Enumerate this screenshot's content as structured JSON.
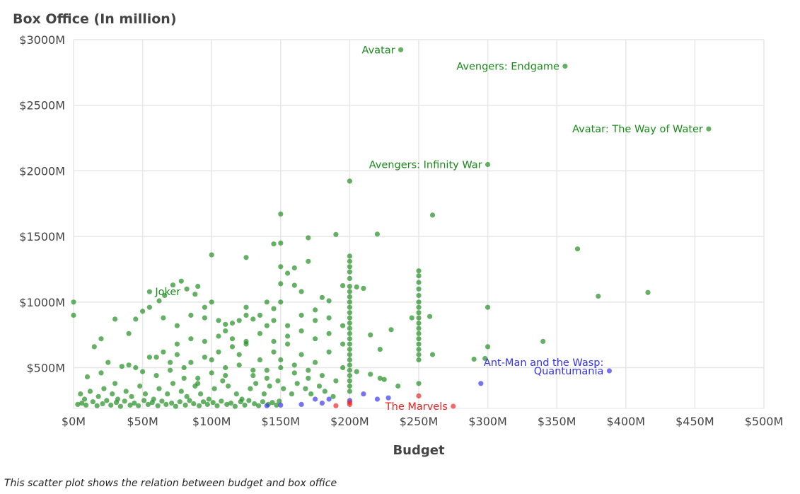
{
  "caption": "This scatter plot shows the relation between budget and box office",
  "chart_data": {
    "type": "scatter",
    "title": "",
    "xlabel": "Budget",
    "ylabel": "Box Office (In million)",
    "xlim": [
      0,
      500
    ],
    "ylim": [
      190,
      3000
    ],
    "x_ticks": [
      0,
      50,
      100,
      150,
      200,
      250,
      300,
      350,
      400,
      450,
      500
    ],
    "y_ticks": [
      500,
      1000,
      1500,
      2000,
      2500,
      3000
    ],
    "x_tick_labels": [
      "$0M",
      "$50M",
      "$100M",
      "$150M",
      "$200M",
      "$250M",
      "$300M",
      "$350M",
      "$400M",
      "$450M",
      "$500M"
    ],
    "y_tick_labels": [
      "$500M",
      "$1000M",
      "$1500M",
      "$2000M",
      "$2500M",
      "$3000M"
    ],
    "grid": true,
    "colors": {
      "green": "#1a8a1a",
      "blue": "#3333ee",
      "red": "#ee2222"
    },
    "annotations": [
      {
        "text": "Avatar",
        "x": 237,
        "y": 2923,
        "color": "green",
        "anchor": "end"
      },
      {
        "text": "Avengers: Endgame",
        "x": 356,
        "y": 2798,
        "color": "green",
        "anchor": "end"
      },
      {
        "text": "Avatar: The Way of Water",
        "x": 460,
        "y": 2320,
        "color": "green",
        "anchor": "end"
      },
      {
        "text": "Avengers: Infinity War",
        "x": 300,
        "y": 2048,
        "color": "green",
        "anchor": "end"
      },
      {
        "text": "Joker",
        "x": 55,
        "y": 1079,
        "color": "green",
        "anchor": "start"
      },
      {
        "text": "Ant-Man and the Wasp:",
        "x": 388,
        "y": 540,
        "color": "blue",
        "anchor": "end"
      },
      {
        "text": "Quantumania",
        "x": 388,
        "y": 476,
        "color": "blue",
        "anchor": "end"
      },
      {
        "text": "The Marvels",
        "x": 275,
        "y": 206,
        "color": "red",
        "anchor": "end"
      }
    ],
    "series": [
      {
        "color": "green",
        "points": [
          [
            237,
            2923
          ],
          [
            356,
            2798
          ],
          [
            460,
            2320
          ],
          [
            300,
            2048
          ],
          [
            200,
            1922
          ],
          [
            150,
            1671
          ],
          [
            260,
            1663
          ],
          [
            365,
            1405
          ],
          [
            220,
            1518
          ],
          [
            190,
            1515
          ],
          [
            150,
            1450
          ],
          [
            145,
            1443
          ],
          [
            170,
            1490
          ],
          [
            100,
            1360
          ],
          [
            125,
            1340
          ],
          [
            170,
            1310
          ],
          [
            200,
            1350
          ],
          [
            200,
            1310
          ],
          [
            200,
            1270
          ],
          [
            200,
            1230
          ],
          [
            200,
            1180
          ],
          [
            200,
            1120
          ],
          [
            200,
            1080
          ],
          [
            200,
            1040
          ],
          [
            200,
            1000
          ],
          [
            200,
            960
          ],
          [
            200,
            920
          ],
          [
            200,
            880
          ],
          [
            200,
            840
          ],
          [
            200,
            800
          ],
          [
            200,
            760
          ],
          [
            200,
            720
          ],
          [
            200,
            680
          ],
          [
            200,
            640
          ],
          [
            200,
            600
          ],
          [
            200,
            560
          ],
          [
            200,
            520
          ],
          [
            200,
            480
          ],
          [
            200,
            440
          ],
          [
            200,
            400
          ],
          [
            200,
            360
          ],
          [
            200,
            320
          ],
          [
            250,
            1238
          ],
          [
            250,
            1200
          ],
          [
            250,
            1150
          ],
          [
            250,
            1100
          ],
          [
            250,
            1050
          ],
          [
            250,
            1000
          ],
          [
            250,
            960
          ],
          [
            250,
            920
          ],
          [
            250,
            880
          ],
          [
            250,
            840
          ],
          [
            250,
            800
          ],
          [
            250,
            760
          ],
          [
            250,
            720
          ],
          [
            250,
            680
          ],
          [
            250,
            640
          ],
          [
            250,
            600
          ],
          [
            250,
            560
          ],
          [
            250,
            380
          ],
          [
            380,
            1045
          ],
          [
            416,
            1073
          ],
          [
            300,
            960
          ],
          [
            300,
            660
          ],
          [
            340,
            700
          ],
          [
            298,
            570
          ],
          [
            290,
            565
          ],
          [
            260,
            600
          ],
          [
            258,
            890
          ],
          [
            245,
            880
          ],
          [
            230,
            790
          ],
          [
            222,
            640
          ],
          [
            222,
            420
          ],
          [
            210,
            1105
          ],
          [
            215,
            750
          ],
          [
            205,
            1115
          ],
          [
            195,
            1125
          ],
          [
            185,
            1010
          ],
          [
            180,
            1035
          ],
          [
            175,
            940
          ],
          [
            160,
            1128
          ],
          [
            165,
            1080
          ],
          [
            155,
            1220
          ],
          [
            150,
            1270
          ],
          [
            160,
            1260
          ],
          [
            150,
            1140
          ],
          [
            150,
            1000
          ],
          [
            145,
            950
          ],
          [
            140,
            1000
          ],
          [
            140,
            820
          ],
          [
            130,
            870
          ],
          [
            125,
            900
          ],
          [
            125,
            960
          ],
          [
            120,
            860
          ],
          [
            110,
            830
          ],
          [
            110,
            780
          ],
          [
            100,
            1000
          ],
          [
            95,
            960
          ],
          [
            90,
            1120
          ],
          [
            88,
            1060
          ],
          [
            82,
            1100
          ],
          [
            78,
            1160
          ],
          [
            72,
            1130
          ],
          [
            66,
            1050
          ],
          [
            62,
            1010
          ],
          [
            55,
            1079
          ],
          [
            55,
            960
          ],
          [
            50,
            930
          ],
          [
            45,
            870
          ],
          [
            40,
            760
          ],
          [
            30,
            870
          ],
          [
            20,
            720
          ],
          [
            0,
            1000
          ],
          [
            0,
            900
          ],
          [
            15,
            660
          ],
          [
            25,
            540
          ],
          [
            35,
            510
          ],
          [
            45,
            500
          ],
          [
            55,
            580
          ],
          [
            65,
            620
          ],
          [
            75,
            600
          ],
          [
            85,
            540
          ],
          [
            95,
            580
          ],
          [
            105,
            620
          ],
          [
            115,
            660
          ],
          [
            125,
            700
          ],
          [
            135,
            560
          ],
          [
            145,
            620
          ],
          [
            155,
            680
          ],
          [
            165,
            600
          ],
          [
            175,
            540
          ],
          [
            185,
            620
          ],
          [
            195,
            500
          ],
          [
            205,
            470
          ],
          [
            215,
            450
          ],
          [
            225,
            410
          ],
          [
            235,
            360
          ],
          [
            10,
            430
          ],
          [
            20,
            460
          ],
          [
            30,
            380
          ],
          [
            40,
            520
          ],
          [
            50,
            470
          ],
          [
            60,
            440
          ],
          [
            70,
            480
          ],
          [
            80,
            500
          ],
          [
            90,
            420
          ],
          [
            100,
            460
          ],
          [
            110,
            500
          ],
          [
            120,
            520
          ],
          [
            130,
            440
          ],
          [
            140,
            480
          ],
          [
            150,
            500
          ],
          [
            160,
            460
          ],
          [
            170,
            420
          ],
          [
            180,
            440
          ],
          [
            190,
            400
          ],
          [
            5,
            300
          ],
          [
            8,
            260
          ],
          [
            12,
            320
          ],
          [
            18,
            280
          ],
          [
            22,
            340
          ],
          [
            28,
            300
          ],
          [
            32,
            260
          ],
          [
            38,
            320
          ],
          [
            42,
            280
          ],
          [
            48,
            360
          ],
          [
            52,
            300
          ],
          [
            58,
            260
          ],
          [
            62,
            340
          ],
          [
            68,
            300
          ],
          [
            72,
            380
          ],
          [
            78,
            320
          ],
          [
            82,
            280
          ],
          [
            88,
            360
          ],
          [
            92,
            300
          ],
          [
            98,
            260
          ],
          [
            102,
            340
          ],
          [
            108,
            400
          ],
          [
            112,
            360
          ],
          [
            118,
            300
          ],
          [
            122,
            260
          ],
          [
            128,
            340
          ],
          [
            132,
            380
          ],
          [
            138,
            300
          ],
          [
            142,
            360
          ],
          [
            148,
            400
          ],
          [
            152,
            340
          ],
          [
            158,
            300
          ],
          [
            162,
            380
          ],
          [
            168,
            340
          ],
          [
            172,
            300
          ],
          [
            178,
            360
          ],
          [
            182,
            320
          ],
          [
            188,
            280
          ],
          [
            3,
            220
          ],
          [
            6,
            230
          ],
          [
            9,
            215
          ],
          [
            14,
            240
          ],
          [
            17,
            210
          ],
          [
            21,
            225
          ],
          [
            24,
            250
          ],
          [
            27,
            215
          ],
          [
            31,
            235
          ],
          [
            34,
            205
          ],
          [
            37,
            245
          ],
          [
            41,
            215
          ],
          [
            44,
            230
          ],
          [
            47,
            210
          ],
          [
            51,
            250
          ],
          [
            54,
            220
          ],
          [
            57,
            235
          ],
          [
            61,
            210
          ],
          [
            64,
            245
          ],
          [
            67,
            220
          ],
          [
            71,
            230
          ],
          [
            74,
            205
          ],
          [
            77,
            240
          ],
          [
            81,
            215
          ],
          [
            84,
            250
          ],
          [
            87,
            225
          ],
          [
            91,
            210
          ],
          [
            94,
            240
          ],
          [
            97,
            220
          ],
          [
            101,
            235
          ],
          [
            104,
            210
          ],
          [
            107,
            245
          ],
          [
            111,
            220
          ],
          [
            114,
            230
          ],
          [
            117,
            205
          ],
          [
            121,
            240
          ],
          [
            124,
            215
          ],
          [
            127,
            250
          ],
          [
            131,
            225
          ],
          [
            134,
            210
          ],
          [
            137,
            240
          ],
          [
            141,
            220
          ],
          [
            144,
            235
          ],
          [
            147,
            215
          ],
          [
            149,
            245
          ],
          [
            60,
            580
          ],
          [
            70,
            540
          ],
          [
            80,
            420
          ],
          [
            90,
            380
          ],
          [
            100,
            560
          ],
          [
            110,
            440
          ],
          [
            120,
            600
          ],
          [
            130,
            480
          ],
          [
            140,
            420
          ],
          [
            150,
            560
          ],
          [
            160,
            520
          ],
          [
            170,
            480
          ],
          [
            75,
            680
          ],
          [
            85,
            720
          ],
          [
            95,
            700
          ],
          [
            105,
            740
          ],
          [
            115,
            720
          ],
          [
            125,
            680
          ],
          [
            135,
            760
          ],
          [
            145,
            700
          ],
          [
            155,
            740
          ],
          [
            165,
            780
          ],
          [
            175,
            720
          ],
          [
            185,
            760
          ],
          [
            195,
            680
          ],
          [
            65,
            880
          ],
          [
            75,
            820
          ],
          [
            85,
            900
          ],
          [
            95,
            880
          ],
          [
            105,
            860
          ],
          [
            115,
            840
          ],
          [
            135,
            900
          ],
          [
            145,
            860
          ],
          [
            155,
            820
          ],
          [
            165,
            900
          ],
          [
            175,
            860
          ],
          [
            185,
            880
          ],
          [
            195,
            820
          ]
        ]
      },
      {
        "color": "blue",
        "points": [
          [
            388,
            476
          ],
          [
            295,
            380
          ],
          [
            228,
            270
          ],
          [
            220,
            260
          ],
          [
            210,
            300
          ],
          [
            200,
            250
          ],
          [
            185,
            260
          ],
          [
            180,
            230
          ],
          [
            175,
            260
          ],
          [
            165,
            220
          ],
          [
            150,
            215
          ],
          [
            140,
            210
          ]
        ]
      },
      {
        "color": "red",
        "points": [
          [
            275,
            206
          ],
          [
            250,
            285
          ],
          [
            200,
            220
          ],
          [
            200,
            235
          ],
          [
            190,
            210
          ]
        ]
      }
    ]
  }
}
